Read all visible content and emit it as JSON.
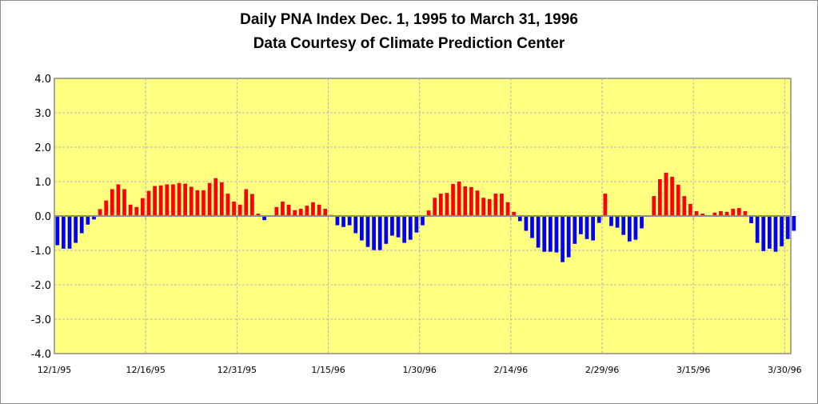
{
  "chart_data": {
    "type": "bar",
    "title": "Daily PNA Index Dec. 1, 1995 to March 31, 1996",
    "subtitle": "Data Courtesy of Climate Prediction Center",
    "xlabel": "",
    "ylabel": "",
    "ylim": [
      -4.0,
      4.0
    ],
    "yticks": [
      "4.0",
      "3.0",
      "2.0",
      "1.0",
      "0.0",
      "-1.0",
      "-2.0",
      "-3.0",
      "-4.0"
    ],
    "xtick_labels": [
      "12/1/95",
      "12/16/95",
      "12/31/95",
      "1/15/96",
      "1/30/96",
      "2/14/96",
      "2/29/96",
      "3/15/96",
      "3/30/96"
    ],
    "xtick_day_index": [
      0,
      15,
      30,
      45,
      60,
      75,
      90,
      105,
      120
    ],
    "grid": true,
    "positive_color": "#ff0000",
    "negative_color": "#0000ff",
    "plot_background": "#ffff80",
    "series": [
      {
        "name": "Daily PNA Index",
        "start_date": "12/1/95",
        "values": [
          -0.85,
          -0.95,
          -0.95,
          -0.78,
          -0.5,
          -0.25,
          -0.1,
          0.2,
          0.45,
          0.78,
          0.92,
          0.78,
          0.33,
          0.26,
          0.52,
          0.73,
          0.87,
          0.89,
          0.92,
          0.92,
          0.96,
          0.94,
          0.85,
          0.75,
          0.75,
          0.96,
          1.1,
          0.98,
          0.65,
          0.42,
          0.33,
          0.78,
          0.64,
          0.07,
          -0.12,
          0.0,
          0.26,
          0.42,
          0.33,
          0.17,
          0.21,
          0.3,
          0.4,
          0.33,
          0.21,
          0.03,
          -0.27,
          -0.32,
          -0.27,
          -0.5,
          -0.71,
          -0.9,
          -0.99,
          -0.99,
          -0.81,
          -0.57,
          -0.62,
          -0.78,
          -0.69,
          -0.48,
          -0.27,
          0.16,
          0.53,
          0.65,
          0.67,
          0.93,
          1.0,
          0.86,
          0.84,
          0.74,
          0.53,
          0.49,
          0.65,
          0.65,
          0.4,
          0.12,
          -0.15,
          -0.43,
          -0.64,
          -0.92,
          -1.04,
          -1.04,
          -1.06,
          -1.34,
          -1.2,
          -0.81,
          -0.53,
          -0.67,
          -0.71,
          -0.2,
          0.65,
          -0.29,
          -0.34,
          -0.55,
          -0.74,
          -0.69,
          -0.36,
          0.02,
          0.58,
          1.07,
          1.26,
          1.14,
          0.91,
          0.58,
          0.35,
          0.14,
          0.07,
          0.02,
          0.1,
          0.14,
          0.12,
          0.21,
          0.23,
          0.14,
          -0.21,
          -0.78,
          -1.02,
          -0.95,
          -1.04,
          -0.88,
          -0.67,
          -0.43
        ]
      }
    ]
  }
}
